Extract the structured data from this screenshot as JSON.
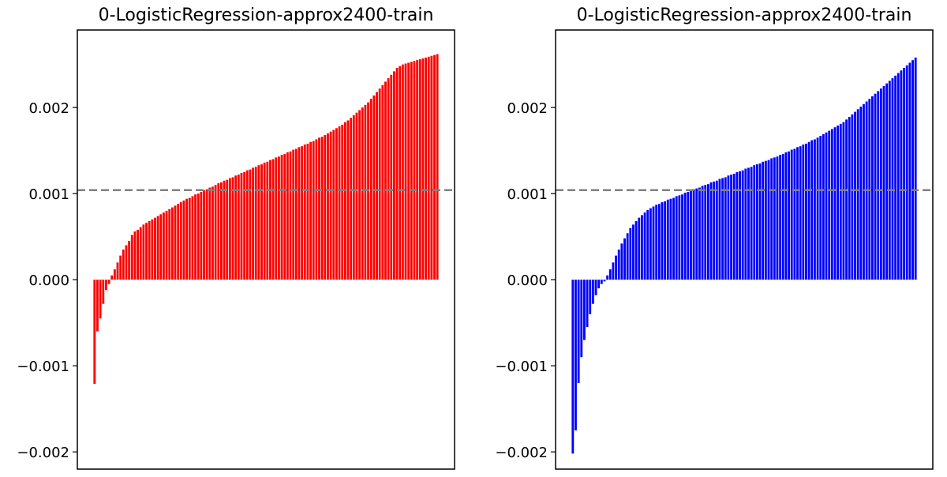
{
  "chart_data": [
    {
      "type": "bar",
      "title": "0-LogisticRegression-approx2400-train",
      "xlabel": "",
      "ylabel": "",
      "ylim": [
        -0.0022,
        0.0029
      ],
      "yticks": [
        {
          "value": -0.002,
          "label": "−0.002"
        },
        {
          "value": -0.001,
          "label": "−0.001"
        },
        {
          "value": 0.0,
          "label": "0.000"
        },
        {
          "value": 0.001,
          "label": "0.001"
        },
        {
          "value": 0.002,
          "label": "0.002"
        }
      ],
      "reference_line": 0.00104,
      "color": "#ff0000",
      "reference_color": "#808080",
      "grid": false,
      "x": [
        1,
        2,
        3,
        4,
        5,
        6,
        7,
        8,
        9,
        10,
        11,
        12,
        13,
        14,
        15,
        16,
        17,
        18,
        19,
        20,
        21,
        22,
        23,
        24,
        25,
        26,
        27,
        28,
        29,
        30,
        31,
        32,
        33,
        34,
        35,
        36,
        37,
        38,
        39,
        40,
        41,
        42,
        43,
        44,
        45,
        46,
        47,
        48,
        49,
        50,
        51,
        52,
        53,
        54,
        55,
        56,
        57,
        58,
        59,
        60,
        61,
        62,
        63,
        64,
        65,
        66,
        67,
        68,
        69,
        70,
        71,
        72,
        73,
        74,
        75,
        76,
        77,
        78,
        79,
        80,
        81,
        82,
        83,
        84,
        85,
        86,
        87,
        88,
        89,
        90,
        91,
        92,
        93,
        94,
        95,
        96,
        97,
        98,
        99,
        100,
        101,
        102,
        103,
        104,
        105,
        106,
        107,
        108,
        109,
        110,
        111,
        112,
        113,
        114,
        115,
        116,
        117,
        118,
        119,
        120
      ],
      "values": [
        -0.00121,
        -0.0006,
        -0.00045,
        -0.00028,
        -0.00012,
        -5e-05,
        5e-05,
        0.00012,
        0.0002,
        0.00028,
        0.00035,
        0.0004,
        0.00045,
        0.00052,
        0.00056,
        0.00058,
        0.00061,
        0.00064,
        0.00066,
        0.00068,
        0.0007,
        0.00072,
        0.00074,
        0.00076,
        0.00078,
        0.0008,
        0.00082,
        0.00084,
        0.00086,
        0.00088,
        0.0009,
        0.00092,
        0.00094,
        0.00095,
        0.00097,
        0.00099,
        0.001,
        0.00102,
        0.00104,
        0.00105,
        0.00107,
        0.00108,
        0.0011,
        0.00112,
        0.00113,
        0.00115,
        0.00116,
        0.00118,
        0.00119,
        0.00121,
        0.00122,
        0.00124,
        0.00125,
        0.00127,
        0.00128,
        0.0013,
        0.00131,
        0.00133,
        0.00134,
        0.00136,
        0.00137,
        0.00139,
        0.0014,
        0.00142,
        0.00143,
        0.00145,
        0.00146,
        0.00148,
        0.00149,
        0.00151,
        0.00152,
        0.00154,
        0.00155,
        0.00157,
        0.00158,
        0.0016,
        0.00161,
        0.00163,
        0.00165,
        0.00166,
        0.00168,
        0.0017,
        0.00172,
        0.00174,
        0.00176,
        0.00178,
        0.0018,
        0.00183,
        0.00185,
        0.00188,
        0.00191,
        0.00194,
        0.00197,
        0.002,
        0.00203,
        0.00206,
        0.0021,
        0.00214,
        0.00218,
        0.00222,
        0.00226,
        0.0023,
        0.00234,
        0.00238,
        0.00242,
        0.00246,
        0.00248,
        0.0025,
        0.00251,
        0.00252,
        0.00253,
        0.00254,
        0.00255,
        0.00256,
        0.00257,
        0.00258,
        0.00259,
        0.0026,
        0.00261,
        0.00262
      ]
    },
    {
      "type": "bar",
      "title": "0-LogisticRegression-approx2400-train",
      "xlabel": "",
      "ylabel": "",
      "ylim": [
        -0.0022,
        0.0029
      ],
      "yticks": [
        {
          "value": -0.002,
          "label": "−0.002"
        },
        {
          "value": -0.001,
          "label": "−0.001"
        },
        {
          "value": 0.0,
          "label": "0.000"
        },
        {
          "value": 0.001,
          "label": "0.001"
        },
        {
          "value": 0.002,
          "label": "0.002"
        }
      ],
      "reference_line": 0.00104,
      "color": "#0000ff",
      "reference_color": "#808080",
      "grid": false,
      "x": [
        1,
        2,
        3,
        4,
        5,
        6,
        7,
        8,
        9,
        10,
        11,
        12,
        13,
        14,
        15,
        16,
        17,
        18,
        19,
        20,
        21,
        22,
        23,
        24,
        25,
        26,
        27,
        28,
        29,
        30,
        31,
        32,
        33,
        34,
        35,
        36,
        37,
        38,
        39,
        40,
        41,
        42,
        43,
        44,
        45,
        46,
        47,
        48,
        49,
        50,
        51,
        52,
        53,
        54,
        55,
        56,
        57,
        58,
        59,
        60,
        61,
        62,
        63,
        64,
        65,
        66,
        67,
        68,
        69,
        70,
        71,
        72,
        73,
        74,
        75,
        76,
        77,
        78,
        79,
        80,
        81,
        82,
        83,
        84,
        85,
        86,
        87,
        88,
        89,
        90,
        91,
        92,
        93,
        94,
        95,
        96,
        97,
        98,
        99,
        100,
        101,
        102,
        103,
        104,
        105,
        106,
        107,
        108,
        109,
        110,
        111,
        112,
        113,
        114,
        115,
        116,
        117,
        118,
        119,
        120
      ],
      "values": [
        -0.00202,
        -0.00175,
        -0.0012,
        -0.0009,
        -0.0007,
        -0.00055,
        -0.0004,
        -0.00028,
        -0.00018,
        -0.0001,
        -5e-05,
        -2e-05,
        5e-05,
        0.00012,
        0.0002,
        0.00028,
        0.00035,
        0.00042,
        0.00048,
        0.00054,
        0.0006,
        0.00064,
        0.00068,
        0.00072,
        0.00075,
        0.00078,
        0.00081,
        0.00083,
        0.00085,
        0.00087,
        0.00088,
        0.0009,
        0.00091,
        0.00093,
        0.00094,
        0.00095,
        0.00097,
        0.00098,
        0.00099,
        0.00101,
        0.00102,
        0.00103,
        0.00105,
        0.00106,
        0.00107,
        0.00109,
        0.0011,
        0.00111,
        0.00113,
        0.00114,
        0.00115,
        0.00117,
        0.00118,
        0.00119,
        0.00121,
        0.00122,
        0.00123,
        0.00125,
        0.00126,
        0.00127,
        0.00129,
        0.0013,
        0.00131,
        0.00133,
        0.00134,
        0.00135,
        0.00137,
        0.00138,
        0.00139,
        0.00141,
        0.00142,
        0.00143,
        0.00145,
        0.00146,
        0.00148,
        0.00149,
        0.00151,
        0.00152,
        0.00154,
        0.00155,
        0.00157,
        0.00158,
        0.0016,
        0.00162,
        0.00163,
        0.00165,
        0.00167,
        0.00169,
        0.00171,
        0.00173,
        0.00175,
        0.00177,
        0.00179,
        0.00181,
        0.00183,
        0.00186,
        0.00189,
        0.00192,
        0.00195,
        0.00198,
        0.00201,
        0.00204,
        0.00207,
        0.0021,
        0.00213,
        0.00216,
        0.00219,
        0.00222,
        0.00225,
        0.00228,
        0.00231,
        0.00234,
        0.00237,
        0.0024,
        0.00243,
        0.00246,
        0.00249,
        0.00252,
        0.00255,
        0.00258
      ]
    }
  ]
}
